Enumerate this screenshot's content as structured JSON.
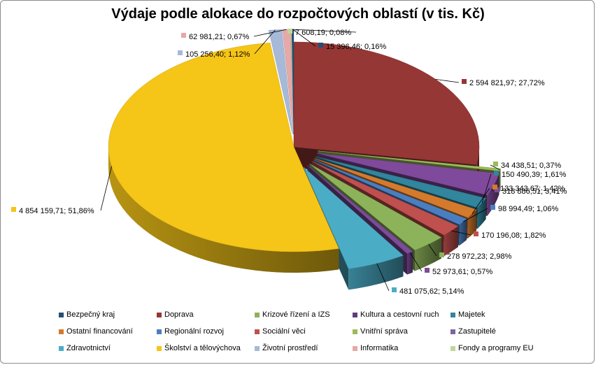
{
  "chart_data": {
    "type": "pie",
    "title": "Výdaje podle alokace do rozpočtových oblastí (v tis. Kč)",
    "series": [
      {
        "name": "Doprava",
        "value": 2594821.97,
        "percent": 27.72,
        "label": "2 594 821,97; 27,72%",
        "color": "#953735"
      },
      {
        "name": "Fondy a programy EU",
        "value": 34438.51,
        "percent": 0.37,
        "label": "34 438,51; 0,37%",
        "color": "#9bbb59"
      },
      {
        "name": "Zastupitelé",
        "value": 318886.51,
        "percent": 3.41,
        "label": "318 886,51; 3,41%",
        "color": "#7f4a9b"
      },
      {
        "name": "Majetek",
        "value": 150490.39,
        "percent": 1.61,
        "label": "150 490,39; 1,61%",
        "color": "#31859c"
      },
      {
        "name": "Ostatní financování",
        "value": 133343.67,
        "percent": 1.42,
        "label": "133 343,67; 1,42%",
        "color": "#d47a2c"
      },
      {
        "name": "Regionální rozvoj",
        "value": 98994.49,
        "percent": 1.06,
        "label": "98 994,49; 1,06%",
        "color": "#4a7ec0"
      },
      {
        "name": "Sociální věci",
        "value": 170196.08,
        "percent": 1.82,
        "label": "170 196,08; 1,82%",
        "color": "#c0504d"
      },
      {
        "name": "Vnitřní správa",
        "value": 278972.23,
        "percent": 2.98,
        "label": "278 972,23; 2,98%",
        "color": "#8db35a"
      },
      {
        "name": "Kultura a cestovní ruch",
        "value": 52973.61,
        "percent": 0.57,
        "label": "52 973,61; 0,57%",
        "color": "#7b4c9a"
      },
      {
        "name": "Zdravotnictví",
        "value": 481075.62,
        "percent": 5.14,
        "label": "481 075,62; 5,14%",
        "color": "#4bacc6"
      },
      {
        "name": "Školství a tělovýchova",
        "value": 4854159.71,
        "percent": 51.86,
        "label": "4 854 159,71; 51,86%",
        "color": "#f5c518"
      },
      {
        "name": "Životní prostředí",
        "value": 105256.4,
        "percent": 1.12,
        "label": "105 256,40; 1,12%",
        "color": "#a6b9d8"
      },
      {
        "name": "Informatika",
        "value": 62981.21,
        "percent": 0.67,
        "label": "62 981,21; 0,67%",
        "color": "#e6a8a8"
      },
      {
        "name": "Krizové řízení a IZS",
        "value": 7608.19,
        "percent": 0.08,
        "label": "7 608,19; 0,08%",
        "color": "#c2d69b"
      },
      {
        "name": "Bezpečný kraj",
        "value": 15396.46,
        "percent": 0.16,
        "label": "15 396,46; 0,16%",
        "color": "#254e78"
      }
    ],
    "legend_placement": "bottom",
    "legend": [
      {
        "name": "Bezpečný kraj",
        "color": "#254e78"
      },
      {
        "name": "Doprava",
        "color": "#953735"
      },
      {
        "name": "Krizové řízení a IZS",
        "color": "#8db35a"
      },
      {
        "name": "Kultura a cestovní ruch",
        "color": "#5f3d7f"
      },
      {
        "name": "Majetek",
        "color": "#31859c"
      },
      {
        "name": "Ostatní financování",
        "color": "#d47a2c"
      },
      {
        "name": "Regionální rozvoj",
        "color": "#4a7ec0"
      },
      {
        "name": "Sociální věci",
        "color": "#c0504d"
      },
      {
        "name": "Vnitřní správa",
        "color": "#9bbb59"
      },
      {
        "name": "Zastupitelé",
        "color": "#8064a2"
      },
      {
        "name": "Zdravotnictví",
        "color": "#4bacc6"
      },
      {
        "name": "Školství a tělovýchova",
        "color": "#f5c518"
      },
      {
        "name": "Životní prostředí",
        "color": "#a6b9d8"
      },
      {
        "name": "Informatika",
        "color": "#e6a8a8"
      },
      {
        "name": "Fondy a programy EU",
        "color": "#c2d69b"
      }
    ]
  }
}
